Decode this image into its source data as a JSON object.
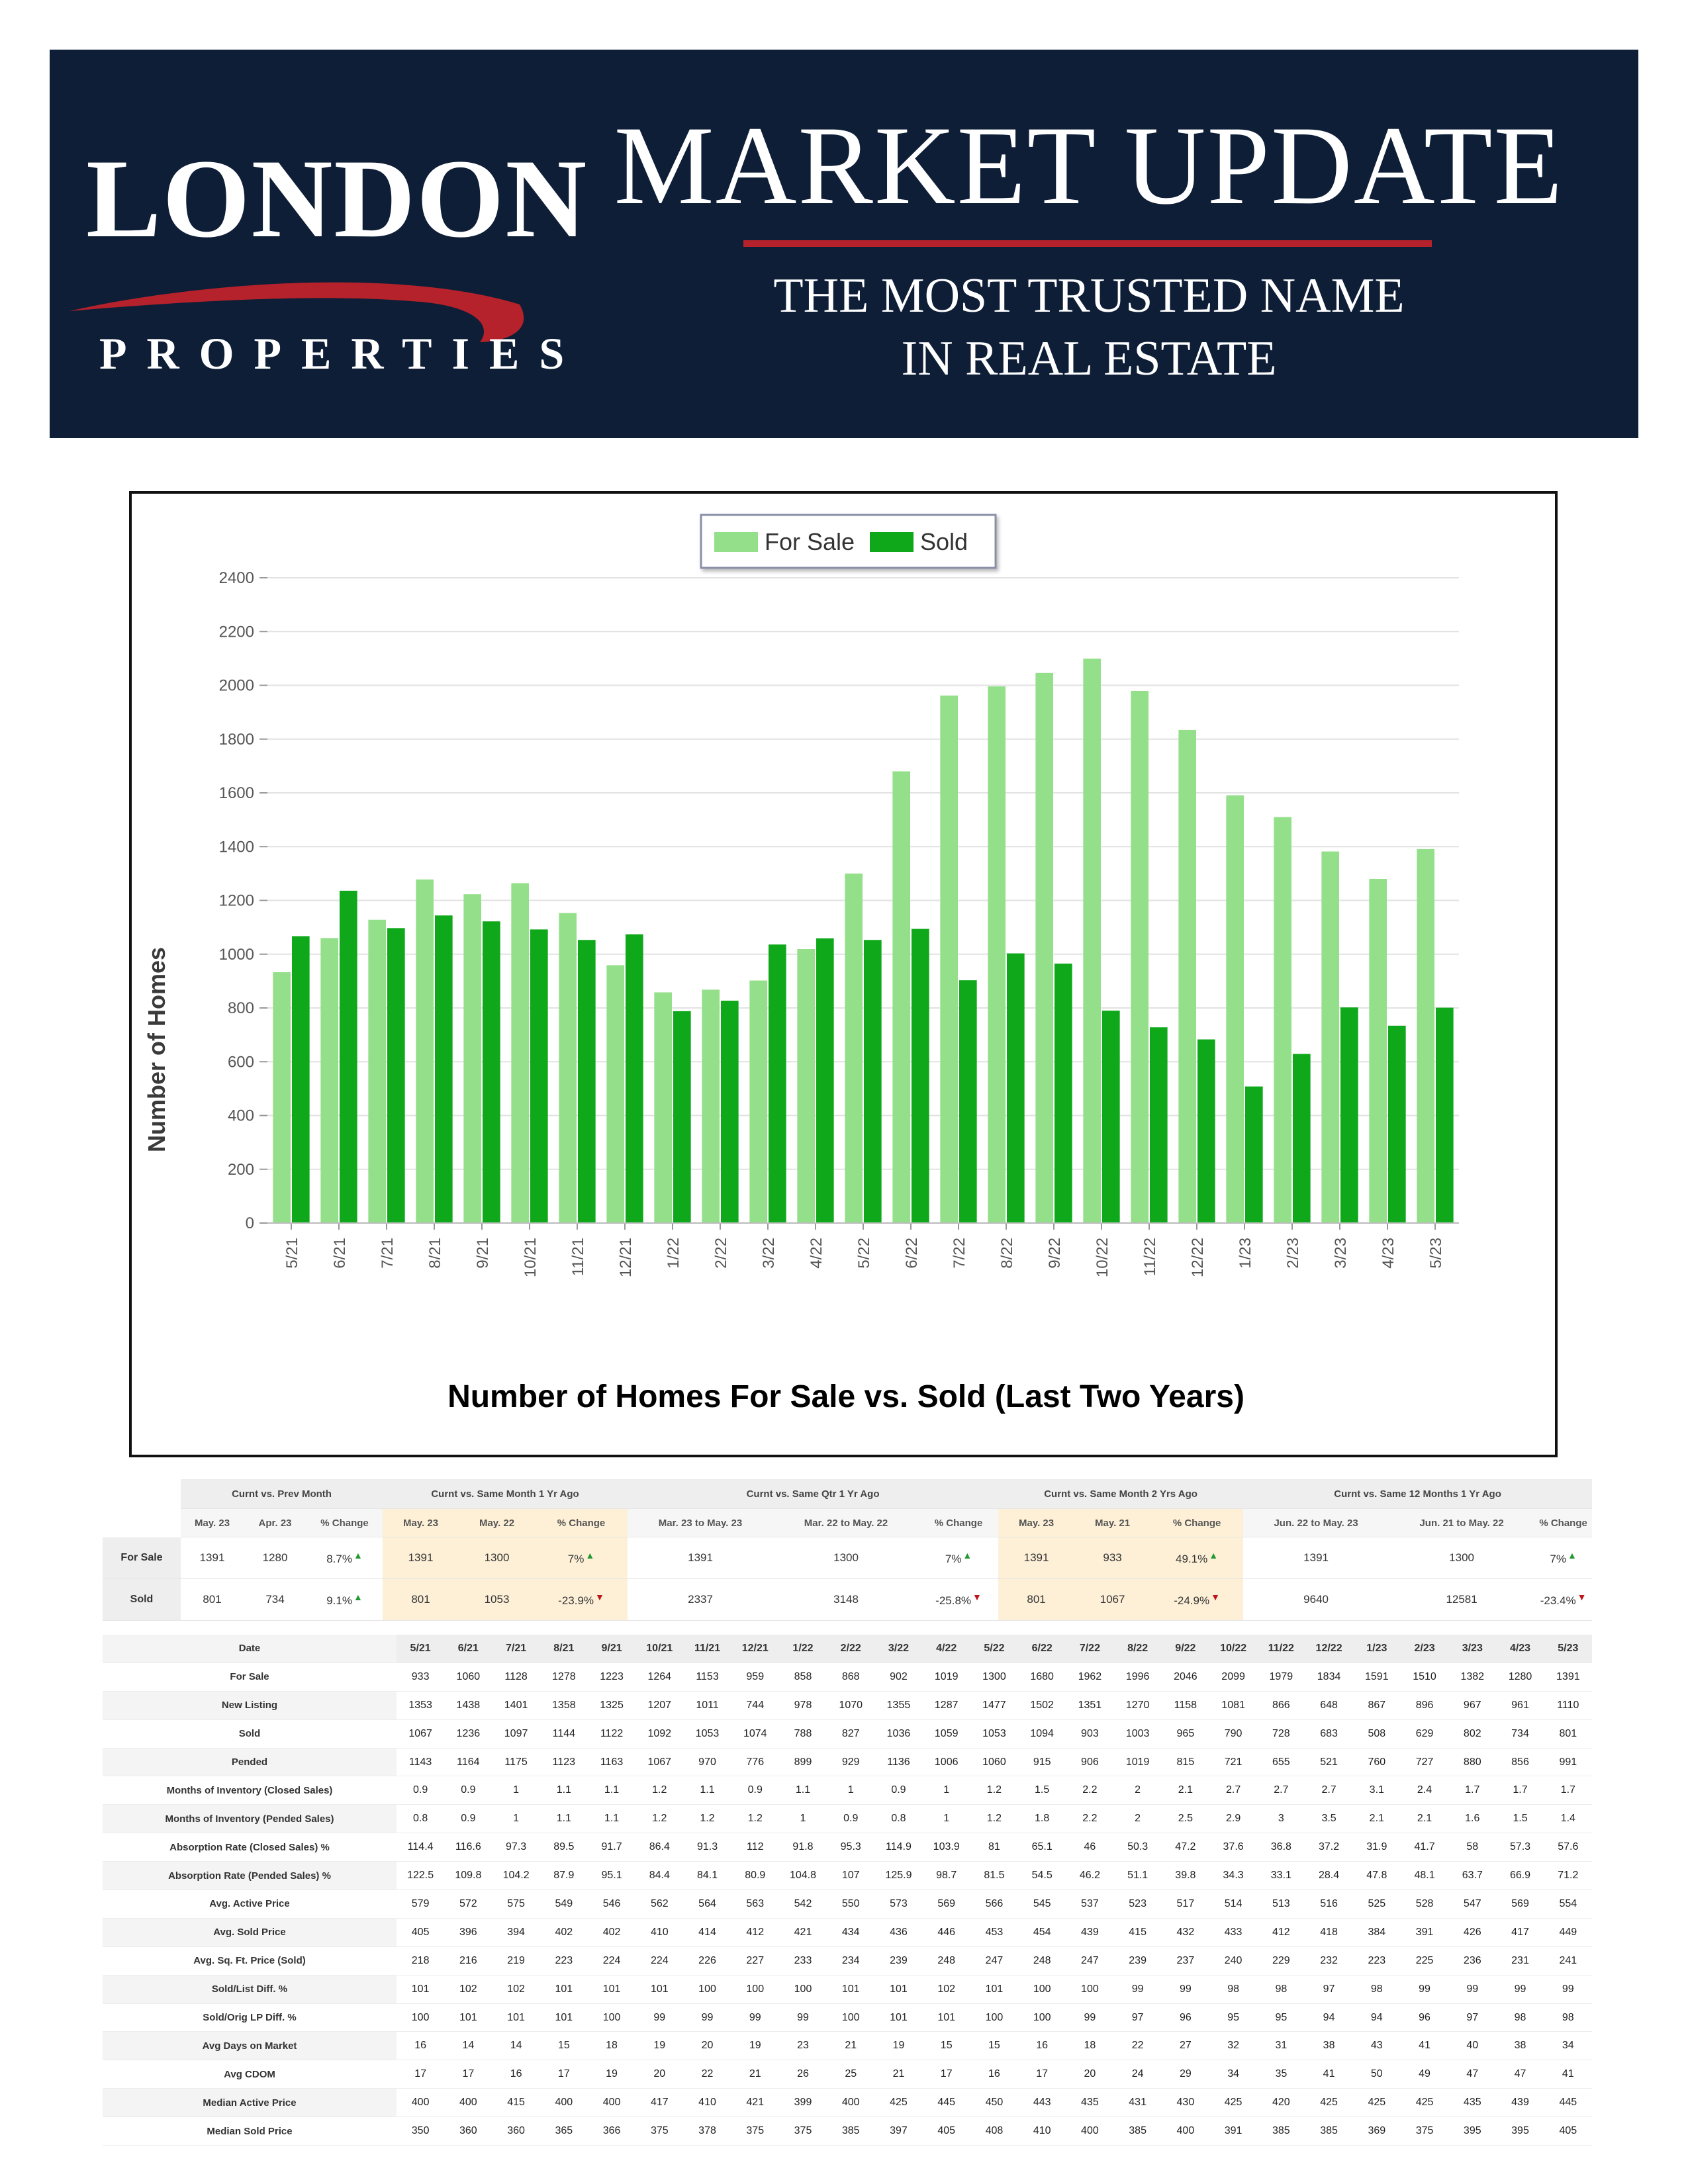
{
  "header": {
    "logo_name": "LONDON",
    "logo_sub": "PROPERTIES",
    "title": "MARKET UPDATE",
    "tagline_line1": "THE MOST TRUSTED NAME",
    "tagline_line2": "IN REAL ESTATE",
    "colors": {
      "background": "#0e1e37",
      "accent": "#b5222b",
      "text": "#ffffff"
    }
  },
  "chart_data": {
    "type": "bar",
    "title": "Number of Homes For Sale vs. Sold (Last Two Years)",
    "ylabel": "Number of Homes",
    "xlabel": "",
    "ylim": [
      0,
      2400
    ],
    "yticks": [
      "0",
      "200",
      "400",
      "600",
      "800",
      "1000",
      "1200",
      "1400",
      "1600",
      "1800",
      "2000",
      "2200",
      "2400"
    ],
    "categories": [
      "5/21",
      "6/21",
      "7/21",
      "8/21",
      "9/21",
      "10/21",
      "11/21",
      "12/21",
      "1/22",
      "2/22",
      "3/22",
      "4/22",
      "5/22",
      "6/22",
      "7/22",
      "8/22",
      "9/22",
      "10/22",
      "11/22",
      "12/22",
      "1/23",
      "2/23",
      "3/23",
      "4/23",
      "5/23"
    ],
    "series": [
      {
        "name": "For Sale",
        "color": "#94e08a",
        "values": [
          933,
          1060,
          1128,
          1278,
          1223,
          1264,
          1153,
          959,
          858,
          868,
          902,
          1019,
          1300,
          1680,
          1962,
          1996,
          2046,
          2099,
          1979,
          1834,
          1591,
          1510,
          1382,
          1280,
          1391
        ]
      },
      {
        "name": "Sold",
        "color": "#0fa81a",
        "values": [
          1067,
          1236,
          1097,
          1144,
          1122,
          1092,
          1053,
          1074,
          788,
          827,
          1036,
          1059,
          1053,
          1094,
          903,
          1003,
          965,
          790,
          728,
          683,
          508,
          629,
          802,
          734,
          801
        ]
      }
    ],
    "legend": "top-center",
    "grid": true
  },
  "summary": {
    "groups": [
      "Curnt vs. Prev Month",
      "Curnt vs. Same Month 1 Yr Ago",
      "Curnt vs. Same Qtr 1 Yr Ago",
      "Curnt vs. Same Month 2 Yrs Ago",
      "Curnt vs. Same 12 Months 1 Yr Ago"
    ],
    "headers": [
      "May. 23",
      "Apr. 23",
      "% Change",
      "May. 23",
      "May. 22",
      "% Change",
      "Mar. 23 to May. 23",
      "Mar. 22 to May. 22",
      "% Change",
      "May. 23",
      "May. 21",
      "% Change",
      "Jun. 22 to May. 23",
      "Jun. 21 to May. 22",
      "% Change"
    ],
    "rows": [
      {
        "label": "For Sale",
        "cells": [
          "1391",
          "1280",
          "8.7%",
          "1391",
          "1300",
          "7%",
          "1391",
          "1300",
          "7%",
          "1391",
          "933",
          "49.1%",
          "1391",
          "1300",
          "7%"
        ],
        "arrows": [
          "up",
          "up",
          "up",
          "up",
          "up"
        ]
      },
      {
        "label": "Sold",
        "cells": [
          "801",
          "734",
          "9.1%",
          "801",
          "1053",
          "-23.9%",
          "2337",
          "3148",
          "-25.8%",
          "801",
          "1067",
          "-24.9%",
          "9640",
          "12581",
          "-23.4%"
        ],
        "arrows": [
          "up",
          "down",
          "down",
          "down",
          "down"
        ]
      }
    ],
    "up_glyph": "▲",
    "down_glyph": "▼"
  },
  "stats": {
    "date_label": "Date",
    "dates": [
      "5/21",
      "6/21",
      "7/21",
      "8/21",
      "9/21",
      "10/21",
      "11/21",
      "12/21",
      "1/22",
      "2/22",
      "3/22",
      "4/22",
      "5/22",
      "6/22",
      "7/22",
      "8/22",
      "9/22",
      "10/22",
      "11/22",
      "12/22",
      "1/23",
      "2/23",
      "3/23",
      "4/23",
      "5/23"
    ],
    "rows": [
      {
        "label": "For Sale",
        "values": [
          "933",
          "1060",
          "1128",
          "1278",
          "1223",
          "1264",
          "1153",
          "959",
          "858",
          "868",
          "902",
          "1019",
          "1300",
          "1680",
          "1962",
          "1996",
          "2046",
          "2099",
          "1979",
          "1834",
          "1591",
          "1510",
          "1382",
          "1280",
          "1391"
        ]
      },
      {
        "label": "New Listing",
        "values": [
          "1353",
          "1438",
          "1401",
          "1358",
          "1325",
          "1207",
          "1011",
          "744",
          "978",
          "1070",
          "1355",
          "1287",
          "1477",
          "1502",
          "1351",
          "1270",
          "1158",
          "1081",
          "866",
          "648",
          "867",
          "896",
          "967",
          "961",
          "1110"
        ]
      },
      {
        "label": "Sold",
        "values": [
          "1067",
          "1236",
          "1097",
          "1144",
          "1122",
          "1092",
          "1053",
          "1074",
          "788",
          "827",
          "1036",
          "1059",
          "1053",
          "1094",
          "903",
          "1003",
          "965",
          "790",
          "728",
          "683",
          "508",
          "629",
          "802",
          "734",
          "801"
        ]
      },
      {
        "label": "Pended",
        "values": [
          "1143",
          "1164",
          "1175",
          "1123",
          "1163",
          "1067",
          "970",
          "776",
          "899",
          "929",
          "1136",
          "1006",
          "1060",
          "915",
          "906",
          "1019",
          "815",
          "721",
          "655",
          "521",
          "760",
          "727",
          "880",
          "856",
          "991"
        ]
      },
      {
        "label": "Months of Inventory (Closed Sales)",
        "values": [
          "0.9",
          "0.9",
          "1",
          "1.1",
          "1.1",
          "1.2",
          "1.1",
          "0.9",
          "1.1",
          "1",
          "0.9",
          "1",
          "1.2",
          "1.5",
          "2.2",
          "2",
          "2.1",
          "2.7",
          "2.7",
          "2.7",
          "3.1",
          "2.4",
          "1.7",
          "1.7",
          "1.7"
        ]
      },
      {
        "label": "Months of Inventory (Pended Sales)",
        "values": [
          "0.8",
          "0.9",
          "1",
          "1.1",
          "1.1",
          "1.2",
          "1.2",
          "1.2",
          "1",
          "0.9",
          "0.8",
          "1",
          "1.2",
          "1.8",
          "2.2",
          "2",
          "2.5",
          "2.9",
          "3",
          "3.5",
          "2.1",
          "2.1",
          "1.6",
          "1.5",
          "1.4"
        ]
      },
      {
        "label": "Absorption Rate (Closed Sales) %",
        "values": [
          "114.4",
          "116.6",
          "97.3",
          "89.5",
          "91.7",
          "86.4",
          "91.3",
          "112",
          "91.8",
          "95.3",
          "114.9",
          "103.9",
          "81",
          "65.1",
          "46",
          "50.3",
          "47.2",
          "37.6",
          "36.8",
          "37.2",
          "31.9",
          "41.7",
          "58",
          "57.3",
          "57.6"
        ]
      },
      {
        "label": "Absorption Rate (Pended Sales) %",
        "values": [
          "122.5",
          "109.8",
          "104.2",
          "87.9",
          "95.1",
          "84.4",
          "84.1",
          "80.9",
          "104.8",
          "107",
          "125.9",
          "98.7",
          "81.5",
          "54.5",
          "46.2",
          "51.1",
          "39.8",
          "34.3",
          "33.1",
          "28.4",
          "47.8",
          "48.1",
          "63.7",
          "66.9",
          "71.2"
        ]
      },
      {
        "label": "Avg. Active Price",
        "values": [
          "579",
          "572",
          "575",
          "549",
          "546",
          "562",
          "564",
          "563",
          "542",
          "550",
          "573",
          "569",
          "566",
          "545",
          "537",
          "523",
          "517",
          "514",
          "513",
          "516",
          "525",
          "528",
          "547",
          "569",
          "554"
        ]
      },
      {
        "label": "Avg. Sold Price",
        "values": [
          "405",
          "396",
          "394",
          "402",
          "402",
          "410",
          "414",
          "412",
          "421",
          "434",
          "436",
          "446",
          "453",
          "454",
          "439",
          "415",
          "432",
          "433",
          "412",
          "418",
          "384",
          "391",
          "426",
          "417",
          "449"
        ]
      },
      {
        "label": "Avg. Sq. Ft. Price (Sold)",
        "values": [
          "218",
          "216",
          "219",
          "223",
          "224",
          "224",
          "226",
          "227",
          "233",
          "234",
          "239",
          "248",
          "247",
          "248",
          "247",
          "239",
          "237",
          "240",
          "229",
          "232",
          "223",
          "225",
          "236",
          "231",
          "241"
        ]
      },
      {
        "label": "Sold/List Diff. %",
        "values": [
          "101",
          "102",
          "102",
          "101",
          "101",
          "101",
          "100",
          "100",
          "100",
          "101",
          "101",
          "102",
          "101",
          "100",
          "100",
          "99",
          "99",
          "98",
          "98",
          "97",
          "98",
          "99",
          "99",
          "99",
          "99"
        ]
      },
      {
        "label": "Sold/Orig LP Diff. %",
        "values": [
          "100",
          "101",
          "101",
          "101",
          "100",
          "99",
          "99",
          "99",
          "99",
          "100",
          "101",
          "101",
          "100",
          "100",
          "99",
          "97",
          "96",
          "95",
          "95",
          "94",
          "94",
          "96",
          "97",
          "98",
          "98"
        ]
      },
      {
        "label": "Avg Days on Market",
        "values": [
          "16",
          "14",
          "14",
          "15",
          "18",
          "19",
          "20",
          "19",
          "23",
          "21",
          "19",
          "15",
          "15",
          "16",
          "18",
          "22",
          "27",
          "32",
          "31",
          "38",
          "43",
          "41",
          "40",
          "38",
          "34"
        ]
      },
      {
        "label": "Avg CDOM",
        "values": [
          "17",
          "17",
          "16",
          "17",
          "19",
          "20",
          "22",
          "21",
          "26",
          "25",
          "21",
          "17",
          "16",
          "17",
          "20",
          "24",
          "29",
          "34",
          "35",
          "41",
          "50",
          "49",
          "47",
          "47",
          "41"
        ]
      },
      {
        "label": "Median Active Price",
        "values": [
          "400",
          "400",
          "415",
          "400",
          "400",
          "417",
          "410",
          "421",
          "399",
          "400",
          "425",
          "445",
          "450",
          "443",
          "435",
          "431",
          "430",
          "425",
          "420",
          "425",
          "425",
          "425",
          "435",
          "439",
          "445"
        ]
      },
      {
        "label": "Median Sold Price",
        "values": [
          "350",
          "360",
          "360",
          "365",
          "366",
          "375",
          "378",
          "375",
          "375",
          "385",
          "397",
          "405",
          "408",
          "410",
          "400",
          "385",
          "400",
          "391",
          "385",
          "385",
          "369",
          "375",
          "395",
          "395",
          "405"
        ]
      }
    ]
  }
}
